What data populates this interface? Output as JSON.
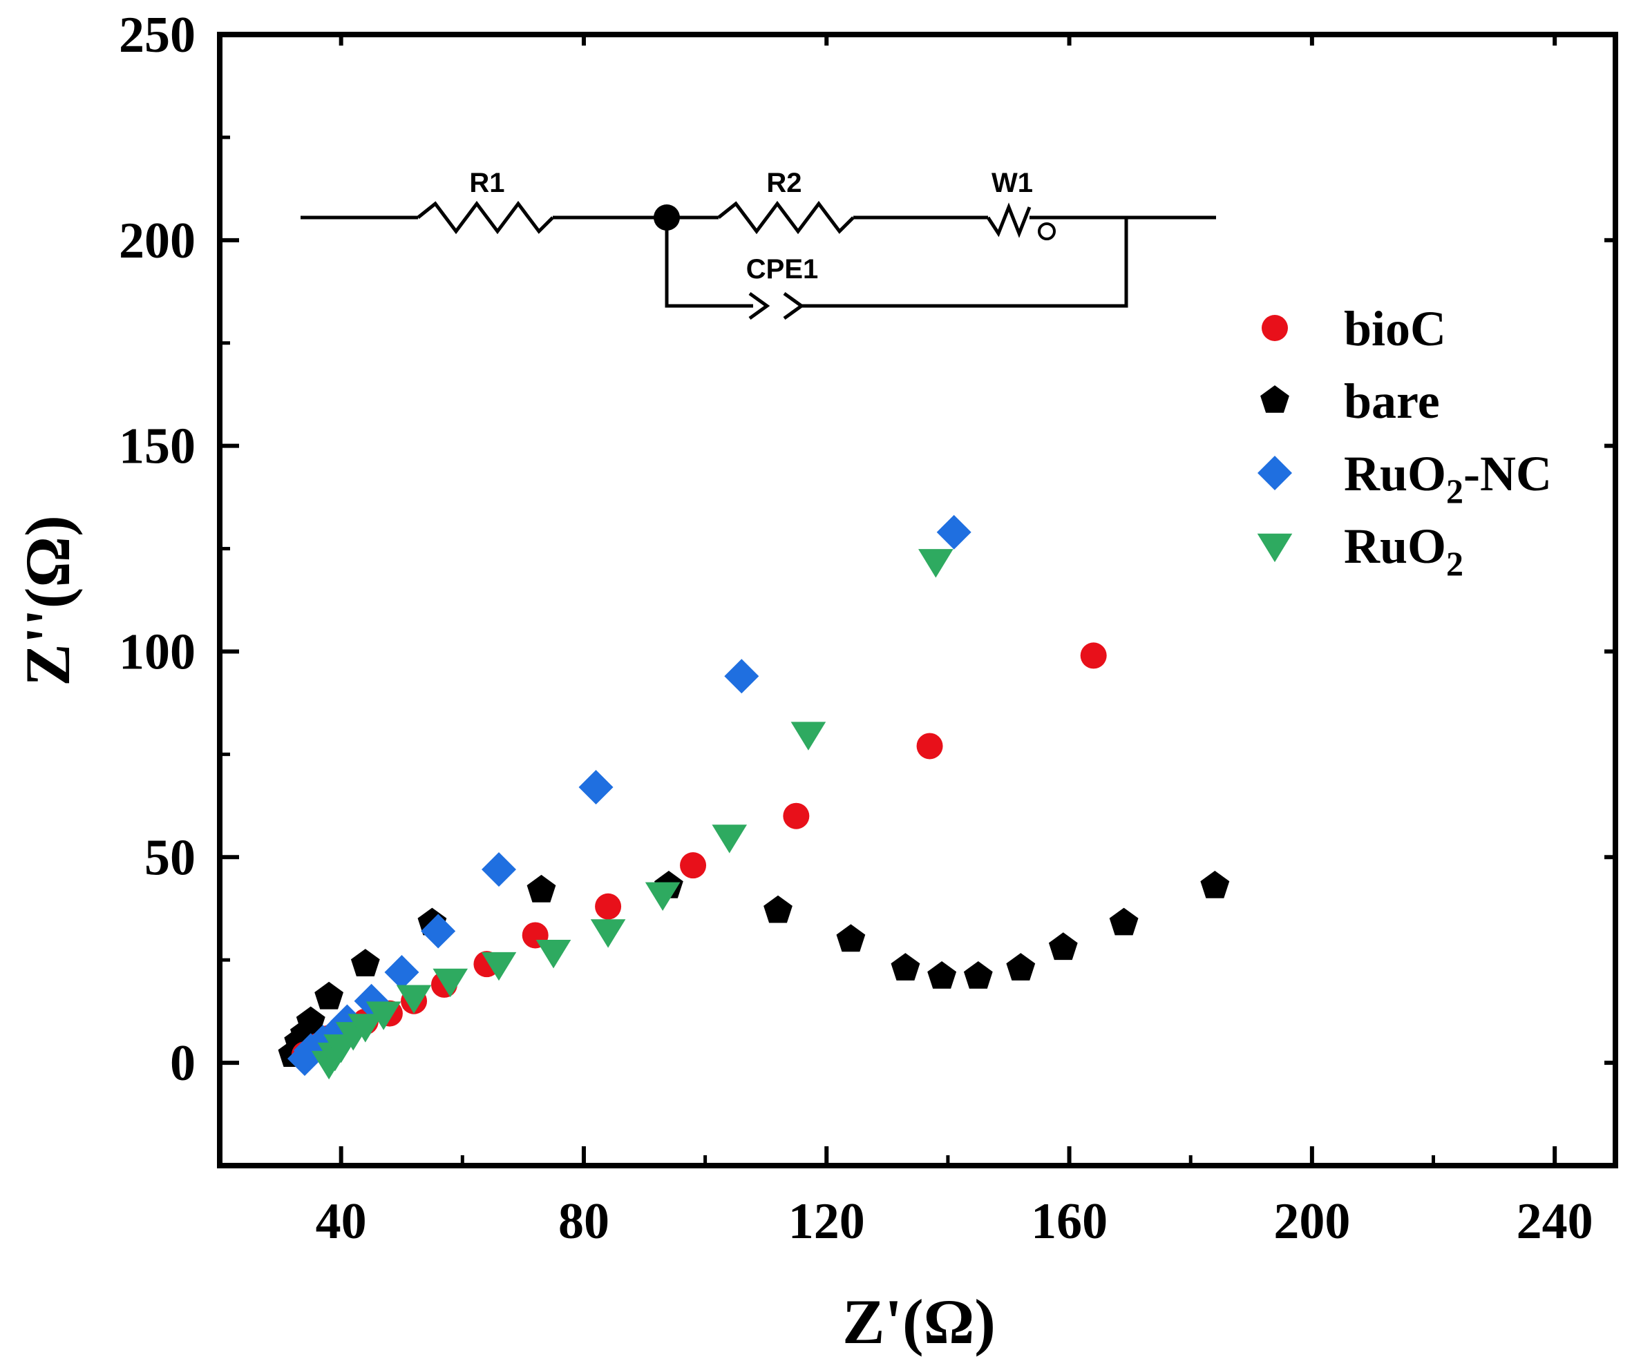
{
  "chart_data": {
    "type": "scatter",
    "xlabel": "Z'(Ω)",
    "ylabel": "Z''(Ω)",
    "xlim": [
      20,
      250
    ],
    "ylim": [
      -25,
      250
    ],
    "xticks": [
      40,
      80,
      120,
      160,
      200,
      240
    ],
    "yticks": [
      0,
      50,
      100,
      150,
      200,
      250
    ],
    "xtick_labels": [
      "40",
      "80",
      "120",
      "160",
      "200",
      "240"
    ],
    "ytick_labels": [
      "0",
      "50",
      "100",
      "150",
      "200",
      "250"
    ],
    "legend_position": "right",
    "series": [
      {
        "name": "bioC",
        "label_main": "bioC",
        "label_sub": "",
        "label_tail": "",
        "marker": "circle",
        "color": "#e8101a",
        "points": [
          [
            34,
            2
          ],
          [
            36,
            4
          ],
          [
            38,
            6
          ],
          [
            41,
            8
          ],
          [
            44,
            10
          ],
          [
            48,
            12
          ],
          [
            52,
            15
          ],
          [
            57,
            19
          ],
          [
            64,
            24
          ],
          [
            72,
            31
          ],
          [
            84,
            38
          ],
          [
            98,
            48
          ],
          [
            115,
            60
          ],
          [
            137,
            77
          ],
          [
            164,
            99
          ]
        ]
      },
      {
        "name": "bare",
        "label_main": "bare",
        "label_sub": "",
        "label_tail": "",
        "marker": "pentagon",
        "color": "#000000",
        "points": [
          [
            32,
            2
          ],
          [
            33,
            5
          ],
          [
            34,
            7
          ],
          [
            35,
            10
          ],
          [
            38,
            16
          ],
          [
            44,
            24
          ],
          [
            55,
            34
          ],
          [
            73,
            42
          ],
          [
            94,
            43
          ],
          [
            112,
            37
          ],
          [
            124,
            30
          ],
          [
            133,
            23
          ],
          [
            139,
            21
          ],
          [
            145,
            21
          ],
          [
            152,
            23
          ],
          [
            159,
            28
          ],
          [
            169,
            34
          ],
          [
            184,
            43
          ]
        ]
      },
      {
        "name": "RuO2-NC",
        "label_main": "RuO",
        "label_sub": "2",
        "label_tail": "-NC",
        "marker": "diamond",
        "color": "#1f6fe0",
        "points": [
          [
            34,
            1
          ],
          [
            35,
            3
          ],
          [
            37,
            5
          ],
          [
            39,
            7
          ],
          [
            41,
            10
          ],
          [
            45,
            15
          ],
          [
            50,
            22
          ],
          [
            56,
            32
          ],
          [
            66,
            47
          ],
          [
            82,
            67
          ],
          [
            106,
            94
          ],
          [
            141,
            129
          ]
        ]
      },
      {
        "name": "RuO2",
        "label_main": "RuO",
        "label_sub": "2",
        "label_tail": "",
        "marker": "triangle-down",
        "color": "#2eaa60",
        "points": [
          [
            38,
            0
          ],
          [
            39,
            2
          ],
          [
            40,
            4
          ],
          [
            42,
            7
          ],
          [
            44,
            9
          ],
          [
            47,
            12
          ],
          [
            52,
            16
          ],
          [
            58,
            20
          ],
          [
            66,
            24
          ],
          [
            75,
            27
          ],
          [
            84,
            32
          ],
          [
            93,
            41
          ],
          [
            104,
            55
          ],
          [
            117,
            80
          ],
          [
            138,
            122
          ]
        ]
      }
    ]
  },
  "circuit": {
    "r1_label": "R1",
    "r2_label": "R2",
    "w1_label": "W1",
    "cpe1_label": "CPE1",
    "warburg_symbol": "o"
  }
}
